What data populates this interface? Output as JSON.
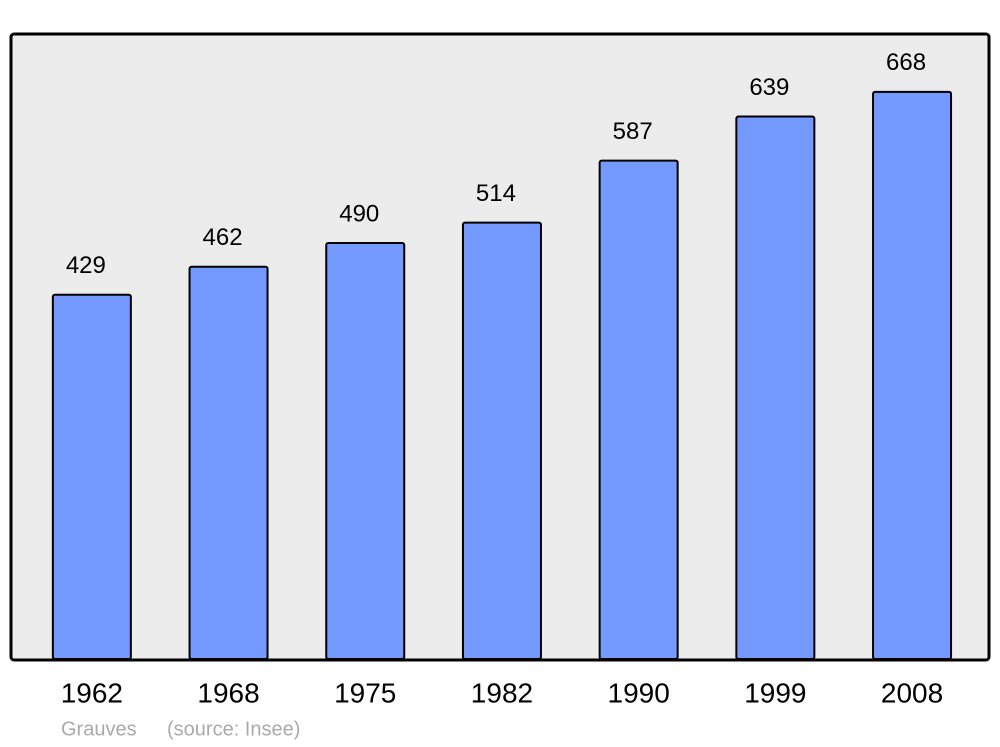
{
  "chart_data": {
    "type": "bar",
    "categories": [
      "1962",
      "1968",
      "1975",
      "1982",
      "1990",
      "1999",
      "2008"
    ],
    "values": [
      429,
      462,
      490,
      514,
      587,
      639,
      668
    ],
    "color": "#7499ff",
    "ylim": [
      0,
      735
    ],
    "place": "Grauves",
    "source": "(source: Insee)"
  }
}
